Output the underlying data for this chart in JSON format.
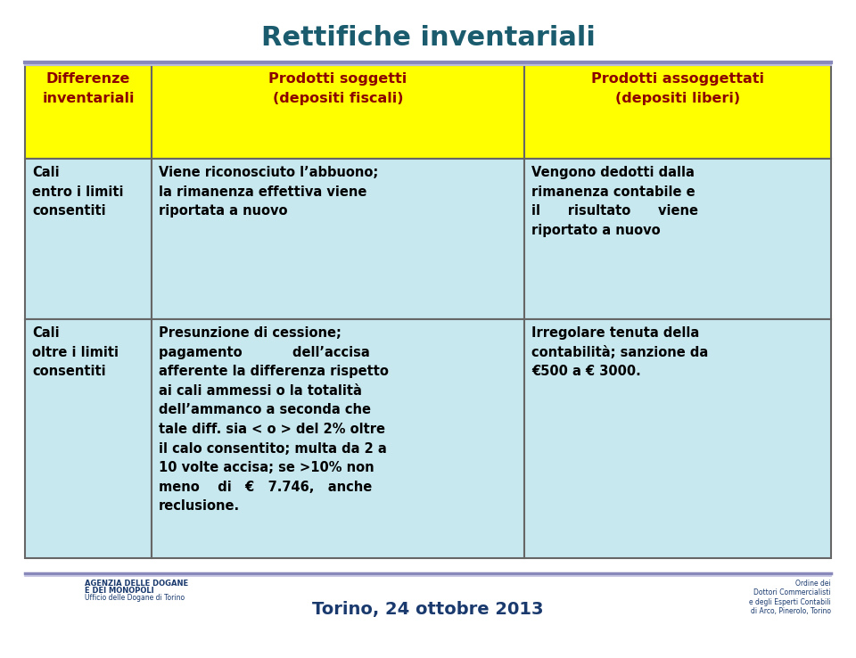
{
  "title": "Rettifiche inventariali",
  "title_color": "#1a5c6e",
  "title_fontsize": 24,
  "footer_text": "Torino, 24 ottobre 2013",
  "bg_color": "#ffffff",
  "header_bg": "#ffff00",
  "body_bg": "#c8e8f0",
  "border_color": "#666666",
  "header_text_color": "#8B0000",
  "body_text_color": "#000000",
  "header_row": [
    "Differenze\ninventariali",
    "Prodotti soggetti\n(depositi fiscali)",
    "Prodotti assoggettati\n(depositi liberi)"
  ],
  "row1_col1": "Cali\nentro i limiti\nconsentiti",
  "row1_col2": "Viene riconosciuto l’abbuono; Vengono dedotti dalla\nla rimanenza effettiva viene rimanenza contabile e\nriportata a nuovo                    il      risultato      viene\n                                           riportato a nuovo",
  "row1_col2_only": "Viene riconosciuto l’abbuono;\nla rimanenza effettiva viene\nriportata a nuovo",
  "row1_col3": "Vengono dedotti dalla\nrimanenza contabile e\nil      risultato      viene\nriportato a nuovo",
  "row2_col1": "Cali\noltre i limiti\nconsentiti",
  "row2_col2": "Presunzione di cessione;\npagamento           dell’accisa\nafferente la differenza rispetto\nai cali ammessi o la totalità\ndell’ammanco a seconda che\ntale diff. sia < o > del 2% oltre\nil calo consentito; multa da 2 a\n10 volte accisa; se >10% non\nmeno    di   €   7.746,   anche\nreclusione.",
  "row2_col3": "Irregolare tenuta della\ncontabilità; sanzione da\n€500 a € 3000.",
  "left_logo_line1": "AGENZIA DELLE DOGANE",
  "left_logo_line2": "E DEI MONOPOLI",
  "left_logo_line3": "Ufficio delle Dogane di Torino",
  "right_logo_text": "Ordine dei\nDottori Commercialisti\ne degli Esperti Contabili\ndi Arco, Pinerolo, Torino"
}
